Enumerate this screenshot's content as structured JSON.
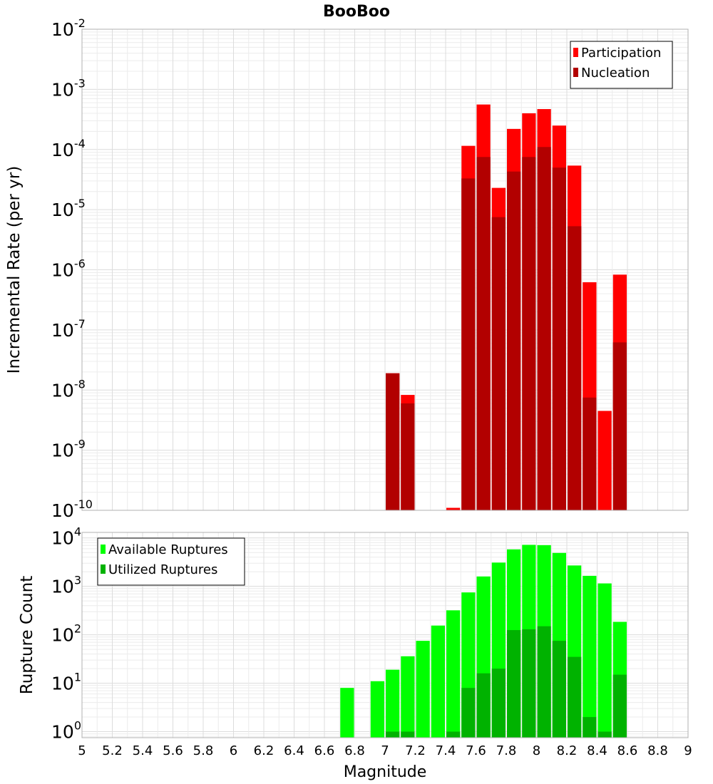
{
  "chart_data": {
    "title": "BooBoo",
    "xlabel": "Magnitude",
    "xlim": [
      5,
      9
    ],
    "x_ticks": [
      "5",
      "5.2",
      "5.4",
      "5.6",
      "5.8",
      "6",
      "6.2",
      "6.4",
      "6.6",
      "6.8",
      "7",
      "7.2",
      "7.4",
      "7.6",
      "7.8",
      "8",
      "8.2",
      "8.4",
      "8.6",
      "8.8",
      "9"
    ],
    "panels": [
      {
        "type": "bar",
        "ylabel": "Incremental Rate (per yr)",
        "yscale": "log",
        "ylim": [
          1e-10,
          0.01
        ],
        "y_tick_labels": [
          {
            "base": "10",
            "exp": "-10"
          },
          {
            "base": "10",
            "exp": "-9"
          },
          {
            "base": "10",
            "exp": "-8"
          },
          {
            "base": "10",
            "exp": "-7"
          },
          {
            "base": "10",
            "exp": "-6"
          },
          {
            "base": "10",
            "exp": "-5"
          },
          {
            "base": "10",
            "exp": "-4"
          },
          {
            "base": "10",
            "exp": "-3"
          },
          {
            "base": "10",
            "exp": "-2"
          }
        ],
        "legend": {
          "placement": "top-right",
          "entries": [
            "Participation",
            "Nucleation"
          ]
        },
        "x": [
          7.0,
          7.1,
          7.4,
          7.5,
          7.6,
          7.7,
          7.8,
          7.9,
          8.0,
          8.1,
          8.2,
          8.3,
          8.4,
          8.5
        ],
        "series": [
          {
            "name": "Participation",
            "color": "#ff0000",
            "values": [
              1.9e-08,
              8.3e-09,
              1.1e-10,
              0.000115,
              0.00056,
              2.3e-05,
              0.00022,
              0.0004,
              0.00047,
              0.00025,
              5.4e-05,
              6.2e-07,
              4.5e-09,
              8.3e-07
            ]
          },
          {
            "name": "Nucleation",
            "color": "#b20000",
            "values": [
              1.9e-08,
              6e-09,
              1e-10,
              3.3e-05,
              7.5e-05,
              7.5e-06,
              4.3e-05,
              7.5e-05,
              0.00011,
              5e-05,
              5.3e-06,
              7.5e-09,
              1e-10,
              6.2e-08
            ]
          }
        ]
      },
      {
        "type": "bar",
        "ylabel": "Rupture Count",
        "yscale": "log",
        "ylim": [
          0.75,
          13000
        ],
        "y_tick_labels": [
          {
            "base": "10",
            "exp": "0"
          },
          {
            "base": "10",
            "exp": "1"
          },
          {
            "base": "10",
            "exp": "2"
          },
          {
            "base": "10",
            "exp": "3"
          },
          {
            "base": "10",
            "exp": "4"
          }
        ],
        "legend": {
          "placement": "top-left",
          "entries": [
            "Available Ruptures",
            "Utilized Ruptures"
          ]
        },
        "x": [
          6.7,
          6.9,
          7.0,
          7.1,
          7.2,
          7.3,
          7.4,
          7.5,
          7.6,
          7.7,
          7.8,
          7.9,
          8.0,
          8.1,
          8.2,
          8.3,
          8.4,
          8.5
        ],
        "series": [
          {
            "name": "Available Ruptures",
            "color": "#00ff00",
            "values": [
              8,
              11,
              19,
              36,
              75,
              155,
              320,
              750,
              1600,
              3100,
              5800,
              7200,
              7100,
              4900,
              2700,
              1650,
              1150,
              185
            ]
          },
          {
            "name": "Utilized Ruptures",
            "color": "#00b200",
            "values": [
              0,
              0,
              1,
              1,
              0,
              0,
              1,
              8,
              16,
              20,
              125,
              130,
              150,
              75,
              35,
              2,
              1,
              15
            ]
          }
        ]
      }
    ]
  }
}
